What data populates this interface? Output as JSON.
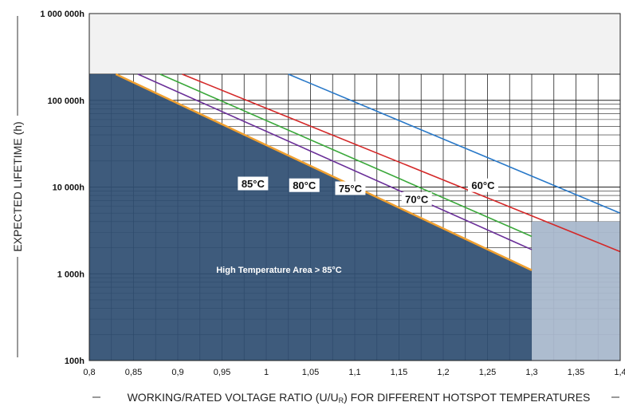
{
  "chart_data": {
    "type": "line",
    "y_scale": "log",
    "xlim": [
      0.8,
      1.4
    ],
    "ylim": [
      100,
      1000000
    ],
    "grid": true,
    "xlabel": "WORKING/RATED VOLTAGE RATIO (U/U",
    "xlabel_sub": "R",
    "xlabel_tail": ") FOR DIFFERENT HOTSPOT TEMPERATURES",
    "ylabel": "EXPECTED LIFETIME (h)",
    "x_ticks": [
      0.8,
      0.85,
      0.9,
      0.95,
      1.0,
      1.05,
      1.1,
      1.15,
      1.2,
      1.25,
      1.3,
      1.35,
      1.4
    ],
    "x_tick_labels": [
      "0,8",
      "0,85",
      "0,9",
      "0,95",
      "1",
      "1,05",
      "1,1",
      "1,15",
      "1,2",
      "1,25",
      "1,3",
      "1,35",
      "1,4"
    ],
    "y_ticks": [
      100,
      1000,
      10000,
      100000,
      1000000
    ],
    "y_tick_labels": [
      "100h",
      "1 000h",
      "10 000h",
      "100 000h",
      "1 000 000h"
    ],
    "series": [
      {
        "name": "85°C",
        "color": "#f0a030",
        "x": [
          0.83,
          1.3
        ],
        "y": [
          200000,
          1100
        ]
      },
      {
        "name": "80°C",
        "color": "#6a2f98",
        "x": [
          0.855,
          1.3
        ],
        "y": [
          200000,
          1900
        ]
      },
      {
        "name": "75°C",
        "color": "#3aa83a",
        "x": [
          0.88,
          1.3
        ],
        "y": [
          200000,
          2700
        ]
      },
      {
        "name": "70°C",
        "color": "#d42828",
        "x": [
          0.905,
          1.4
        ],
        "y": [
          200000,
          1800
        ]
      },
      {
        "name": "60°C",
        "color": "#2878c8",
        "x": [
          1.025,
          1.4
        ],
        "y": [
          200000,
          5000
        ]
      }
    ],
    "regions": [
      {
        "label": "High Temperature Area > 85°C",
        "color": "#2f4f72"
      },
      {
        "label": "",
        "color": "#a9b8cc"
      }
    ],
    "upper_band": {
      "from": 200000,
      "to": 1000000,
      "color": "#f2f2f2"
    }
  }
}
